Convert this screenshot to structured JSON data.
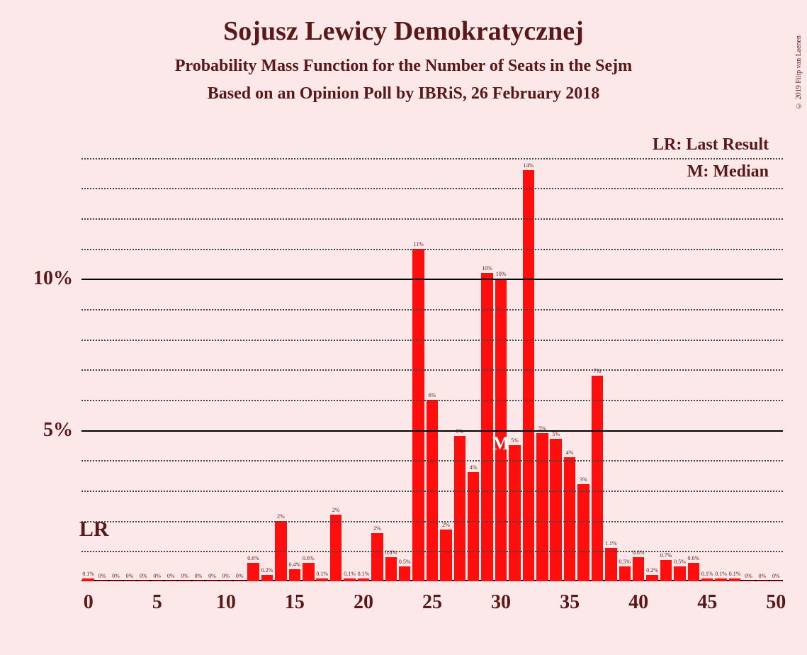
{
  "title": "Sojusz Lewicy Demokratycznej",
  "subtitle1": "Probability Mass Function for the Number of Seats in the Sejm",
  "subtitle2": "Based on an Opinion Poll by IBRiS, 26 February 2018",
  "copyright": "© 2019 Filip van Laenen",
  "legend": {
    "lr": "LR: Last Result",
    "m": "M: Median"
  },
  "chart": {
    "type": "bar",
    "xlim": [
      -0.5,
      50.5
    ],
    "ylim": [
      0,
      15
    ],
    "x_ticks": [
      0,
      5,
      10,
      15,
      20,
      25,
      30,
      35,
      40,
      45,
      50
    ],
    "y_major_ticks": [
      5,
      10
    ],
    "y_minor_ticks": [
      1,
      2,
      3,
      4,
      6,
      7,
      8,
      9,
      11,
      12,
      13,
      14
    ],
    "background_color": "#fce8e8",
    "bar_color": "#ff0e0e",
    "text_color": "#5a1818",
    "grid_solid_color": "#000000",
    "grid_dotted_color": "#444444",
    "bar_width_ratio": 0.85,
    "lr_position": 0,
    "lr_label": "LR",
    "median_position": 30,
    "median_label": "M",
    "bars": [
      {
        "x": 0,
        "value": 0.1,
        "label": "0.1%"
      },
      {
        "x": 1,
        "value": 0.02,
        "label": "0%"
      },
      {
        "x": 2,
        "value": 0.02,
        "label": "0%"
      },
      {
        "x": 3,
        "value": 0.02,
        "label": "0%"
      },
      {
        "x": 4,
        "value": 0.02,
        "label": "0%"
      },
      {
        "x": 5,
        "value": 0.02,
        "label": "0%"
      },
      {
        "x": 6,
        "value": 0.02,
        "label": "0%"
      },
      {
        "x": 7,
        "value": 0.02,
        "label": "0%"
      },
      {
        "x": 8,
        "value": 0.02,
        "label": "0%"
      },
      {
        "x": 9,
        "value": 0.02,
        "label": "0%"
      },
      {
        "x": 10,
        "value": 0.02,
        "label": "0%"
      },
      {
        "x": 11,
        "value": 0.02,
        "label": "0%"
      },
      {
        "x": 12,
        "value": 0.6,
        "label": "0.6%"
      },
      {
        "x": 13,
        "value": 0.2,
        "label": "0.2%"
      },
      {
        "x": 14,
        "value": 2.0,
        "label": "2%"
      },
      {
        "x": 15,
        "value": 0.4,
        "label": "0.4%"
      },
      {
        "x": 16,
        "value": 0.6,
        "label": "0.6%"
      },
      {
        "x": 17,
        "value": 0.1,
        "label": "0.1%"
      },
      {
        "x": 18,
        "value": 2.2,
        "label": "2%"
      },
      {
        "x": 19,
        "value": 0.1,
        "label": "0.1%"
      },
      {
        "x": 20,
        "value": 0.1,
        "label": "0.1%"
      },
      {
        "x": 21,
        "value": 1.6,
        "label": "2%"
      },
      {
        "x": 22,
        "value": 0.8,
        "label": "0.8%"
      },
      {
        "x": 23,
        "value": 0.5,
        "label": "0.5%"
      },
      {
        "x": 24,
        "value": 11.0,
        "label": "11%"
      },
      {
        "x": 25,
        "value": 6.0,
        "label": "6%"
      },
      {
        "x": 26,
        "value": 1.7,
        "label": "2%"
      },
      {
        "x": 27,
        "value": 4.8,
        "label": "5%"
      },
      {
        "x": 28,
        "value": 3.6,
        "label": "4%"
      },
      {
        "x": 29,
        "value": 10.2,
        "label": "10%"
      },
      {
        "x": 30,
        "value": 10.0,
        "label": "10%"
      },
      {
        "x": 31,
        "value": 4.5,
        "label": "5%"
      },
      {
        "x": 32,
        "value": 13.6,
        "label": "14%"
      },
      {
        "x": 33,
        "value": 4.9,
        "label": "5%"
      },
      {
        "x": 34,
        "value": 4.7,
        "label": "5%"
      },
      {
        "x": 35,
        "value": 4.1,
        "label": "4%"
      },
      {
        "x": 36,
        "value": 3.2,
        "label": "3%"
      },
      {
        "x": 37,
        "value": 6.8,
        "label": "7%"
      },
      {
        "x": 38,
        "value": 1.1,
        "label": "1.1%"
      },
      {
        "x": 39,
        "value": 0.5,
        "label": "0.5%"
      },
      {
        "x": 40,
        "value": 0.8,
        "label": "0.8%"
      },
      {
        "x": 41,
        "value": 0.2,
        "label": "0.2%"
      },
      {
        "x": 42,
        "value": 0.7,
        "label": "0.7%"
      },
      {
        "x": 43,
        "value": 0.5,
        "label": "0.5%"
      },
      {
        "x": 44,
        "value": 0.6,
        "label": "0.6%"
      },
      {
        "x": 45,
        "value": 0.1,
        "label": "0.1%"
      },
      {
        "x": 46,
        "value": 0.1,
        "label": "0.1%"
      },
      {
        "x": 47,
        "value": 0.1,
        "label": "0.1%"
      },
      {
        "x": 48,
        "value": 0.02,
        "label": "0%"
      },
      {
        "x": 49,
        "value": 0.02,
        "label": "0%"
      },
      {
        "x": 50,
        "value": 0.02,
        "label": "0%"
      }
    ]
  }
}
